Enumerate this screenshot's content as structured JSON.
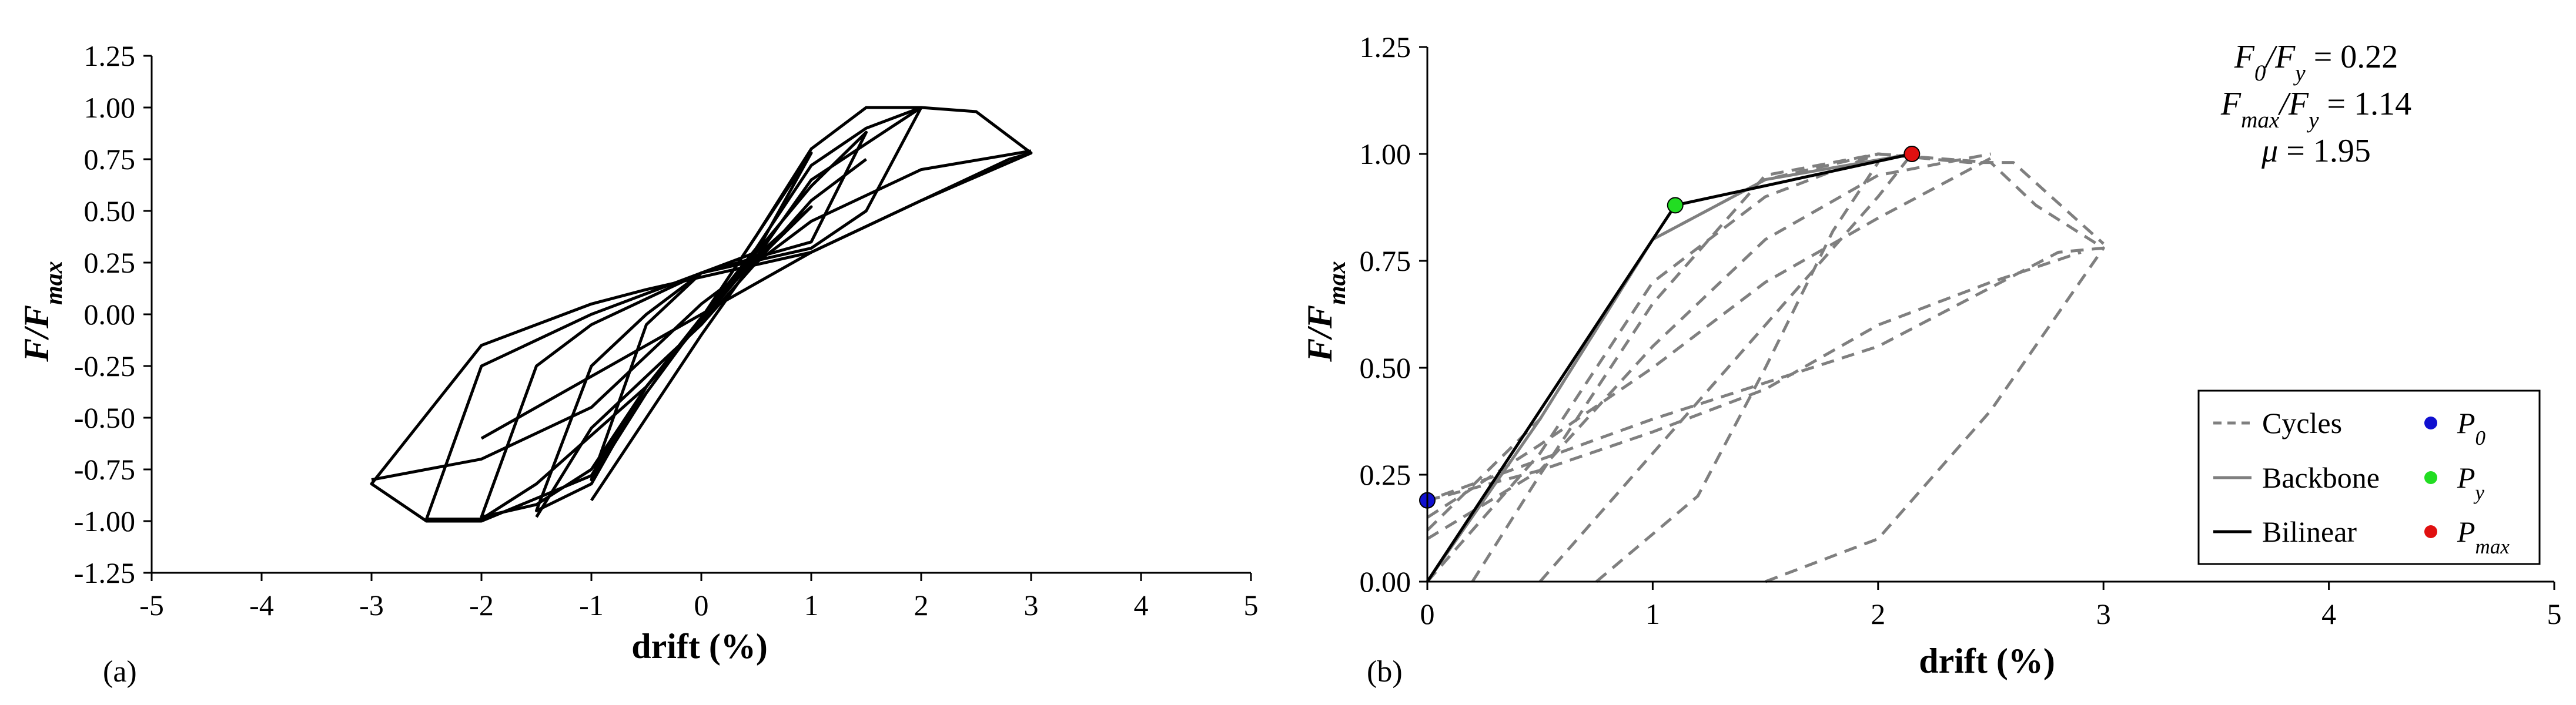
{
  "chart_data": [
    {
      "panel": "(a)",
      "type": "line",
      "xlabel": "drift (%)",
      "ylabel": "F/F_max",
      "xlim": [
        -5,
        5
      ],
      "ylim": [
        -1.25,
        1.25
      ],
      "xticks": [
        "-5",
        "-4",
        "-3",
        "-2",
        "-1",
        "0",
        "1",
        "2",
        "3",
        "4",
        "5"
      ],
      "yticks": [
        "1.25",
        "1.00",
        "0.75",
        "0.50",
        "0.25",
        "0.00",
        "-0.25",
        "-0.50",
        "-0.75",
        "-1.00",
        "-1.25"
      ],
      "grid": false,
      "series": [
        {
          "style": "solid",
          "color": "#000000",
          "points": [
            [
              -0.5,
              -0.35
            ],
            [
              -0.5,
              -0.35
            ],
            [
              0,
              -0.02
            ],
            [
              0.5,
              0.38
            ],
            [
              1,
              0.8
            ],
            [
              1.5,
              1.0
            ],
            [
              2,
              1.0
            ],
            [
              2.5,
              0.98
            ],
            [
              3,
              0.78
            ],
            [
              2.8,
              0.75
            ],
            [
              2,
              0.55
            ],
            [
              1,
              0.3
            ],
            [
              0,
              0.18
            ],
            [
              -0.5,
              0.12
            ],
            [
              -1,
              0.05
            ],
            [
              -2,
              -0.15
            ],
            [
              -3,
              -0.82
            ],
            [
              -2.5,
              -1.0
            ],
            [
              -2,
              -1.0
            ],
            [
              -1,
              -0.78
            ],
            [
              -0.5,
              -0.35
            ]
          ]
        },
        {
          "style": "solid",
          "color": "#000000",
          "points": [
            [
              -0.5,
              -0.35
            ],
            [
              0.5,
              0.32
            ],
            [
              1,
              0.72
            ],
            [
              1.5,
              0.9
            ],
            [
              2,
              1.0
            ],
            [
              1.5,
              0.5
            ],
            [
              1,
              0.32
            ],
            [
              0,
              0.2
            ],
            [
              -1,
              0.0
            ],
            [
              -2,
              -0.25
            ],
            [
              -2.5,
              -0.99
            ],
            [
              -2,
              -0.99
            ],
            [
              -1.5,
              -0.82
            ],
            [
              -0.5,
              -0.35
            ]
          ]
        },
        {
          "style": "solid",
          "color": "#000000",
          "points": [
            [
              -0.5,
              -0.35
            ],
            [
              0.5,
              0.3
            ],
            [
              1,
              0.62
            ],
            [
              1.5,
              0.88
            ],
            [
              1,
              0.35
            ],
            [
              0,
              0.2
            ],
            [
              -1,
              -0.05
            ],
            [
              -1.5,
              -0.25
            ],
            [
              -2,
              -0.98
            ],
            [
              -1.5,
              -0.92
            ],
            [
              -1,
              -0.75
            ],
            [
              -0.5,
              -0.35
            ]
          ]
        },
        {
          "style": "solid",
          "color": "#000000",
          "points": [
            [
              -0.5,
              -0.35
            ],
            [
              0.5,
              0.28
            ],
            [
              1,
              0.52
            ],
            [
              0.5,
              0.26
            ],
            [
              0,
              0.2
            ],
            [
              -0.5,
              0.0
            ],
            [
              -1,
              -0.25
            ],
            [
              -1.5,
              -0.95
            ],
            [
              -1,
              -0.82
            ],
            [
              -0.5,
              -0.35
            ]
          ]
        },
        {
          "style": "solid",
          "color": "#000000",
          "points": [
            [
              0,
              -0.02
            ],
            [
              1,
              0.78
            ],
            [
              0.5,
              0.3
            ],
            [
              0,
              0.2
            ],
            [
              -0.5,
              -0.05
            ],
            [
              -1,
              -0.8
            ],
            [
              -0.5,
              -0.38
            ],
            [
              0,
              -0.02
            ]
          ]
        },
        {
          "style": "solid",
          "color": "#000000",
          "points": [
            [
              -2,
              -0.6
            ],
            [
              -1,
              -0.3
            ],
            [
              0,
              0.0
            ],
            [
              1,
              0.3
            ],
            [
              2,
              0.55
            ],
            [
              3,
              0.78
            ]
          ]
        },
        {
          "style": "solid",
          "color": "#000000",
          "points": [
            [
              -3,
              -0.8
            ],
            [
              -2,
              -0.7
            ],
            [
              -1,
              -0.45
            ],
            [
              0,
              0.05
            ],
            [
              1,
              0.45
            ],
            [
              2,
              0.7
            ],
            [
              3,
              0.79
            ]
          ]
        },
        {
          "style": "solid",
          "color": "#000000",
          "points": [
            [
              -1.5,
              -0.98
            ],
            [
              -1,
              -0.55
            ],
            [
              0,
              -0.05
            ],
            [
              1,
              0.55
            ],
            [
              1.5,
              0.75
            ]
          ]
        },
        {
          "style": "solid",
          "color": "#000000",
          "points": [
            [
              -1,
              -0.9
            ],
            [
              0,
              -0.1
            ],
            [
              1,
              0.65
            ],
            [
              2,
              1.0
            ]
          ]
        }
      ]
    },
    {
      "panel": "(b)",
      "type": "line",
      "xlabel": "drift (%)",
      "ylabel": "F/F_max",
      "xlim": [
        0,
        5
      ],
      "ylim": [
        0,
        1.25
      ],
      "xticks": [
        "0",
        "1",
        "2",
        "3",
        "4",
        "5"
      ],
      "yticks": [
        "1.25",
        "1.00",
        "0.75",
        "0.50",
        "0.25",
        "0.00"
      ],
      "grid": false,
      "legend_position": "bottom-right",
      "legend": [
        {
          "label": "Cycles",
          "kind": "dashed-line",
          "color": "#7f7f7f"
        },
        {
          "label": "Backbone",
          "kind": "solid-line",
          "color": "#7f7f7f"
        },
        {
          "label": "Bilinear",
          "kind": "solid-line",
          "color": "#000000"
        },
        {
          "label": "P",
          "sub": "0",
          "kind": "marker",
          "color": "#1010d0"
        },
        {
          "label": "P",
          "sub": "y",
          "kind": "marker",
          "color": "#22dd22"
        },
        {
          "label": "P",
          "sub": "max",
          "kind": "marker",
          "color": "#e01010"
        }
      ],
      "annotations": [
        {
          "lhs": "F",
          "lsub": "0",
          "rhs": "F",
          "rsub": "y",
          "value": "= 0.22"
        },
        {
          "lhs": "F",
          "lsub": "max",
          "rhs": "F",
          "rsub": "y",
          "value": "= 1.14"
        },
        {
          "lhs": "μ",
          "value": "= 1.95"
        }
      ],
      "points": {
        "P0": {
          "x": 0,
          "y": 0.19
        },
        "Py": {
          "x": 1.1,
          "y": 0.88
        },
        "Pmax": {
          "x": 2.15,
          "y": 1.0
        }
      },
      "bilinear": [
        [
          0,
          0
        ],
        [
          1.1,
          0.88
        ],
        [
          2.15,
          1.0
        ]
      ],
      "backbone": [
        [
          0,
          0
        ],
        [
          0.5,
          0.38
        ],
        [
          1,
          0.8
        ],
        [
          1.5,
          0.94
        ],
        [
          2.15,
          1.0
        ]
      ],
      "cycles": [
        [
          [
            0,
            0.12
          ],
          [
            0.5,
            0.38
          ],
          [
            1,
            0.8
          ],
          [
            1.5,
            0.94
          ],
          [
            2,
            1.0
          ],
          [
            2.5,
            0.98
          ],
          [
            2.7,
            0.88
          ],
          [
            3,
            0.78
          ],
          [
            2.8,
            0.77
          ],
          [
            2,
            0.55
          ],
          [
            1,
            0.38
          ],
          [
            0,
            0.19
          ]
        ],
        [
          [
            0,
            0.0
          ],
          [
            0.5,
            0.3
          ],
          [
            1,
            0.7
          ],
          [
            1.5,
            0.9
          ],
          [
            2,
            1.0
          ],
          [
            2.4,
            0.98
          ],
          [
            2.6,
            0.98
          ],
          [
            3,
            0.79
          ]
        ],
        [
          [
            0,
            0.1
          ],
          [
            0.5,
            0.26
          ],
          [
            1,
            0.55
          ],
          [
            1.5,
            0.8
          ],
          [
            2,
            0.95
          ],
          [
            2.5,
            1.0
          ]
        ],
        [
          [
            0.2,
            0.0
          ],
          [
            0.5,
            0.25
          ],
          [
            1,
            0.65
          ],
          [
            1.5,
            0.95
          ],
          [
            2,
            1.0
          ]
        ],
        [
          [
            0.5,
            0.0
          ],
          [
            1,
            0.3
          ],
          [
            1.5,
            0.6
          ],
          [
            2,
            0.9
          ],
          [
            2.15,
            1.0
          ]
        ],
        [
          [
            0.75,
            0.0
          ],
          [
            1.2,
            0.2
          ],
          [
            1.5,
            0.5
          ],
          [
            1.8,
            0.82
          ],
          [
            2,
            0.98
          ]
        ],
        [
          [
            1.5,
            0.0
          ],
          [
            2,
            0.1
          ],
          [
            2.5,
            0.4
          ],
          [
            3,
            0.78
          ]
        ],
        [
          [
            0,
            0.19
          ],
          [
            0.5,
            0.26
          ],
          [
            1,
            0.35
          ],
          [
            1.5,
            0.45
          ],
          [
            2,
            0.6
          ],
          [
            2.5,
            0.7
          ],
          [
            2.9,
            0.77
          ]
        ],
        [
          [
            0,
            0.15
          ],
          [
            0.5,
            0.32
          ],
          [
            1,
            0.5
          ],
          [
            1.5,
            0.7
          ],
          [
            2,
            0.85
          ],
          [
            2.5,
            0.99
          ]
        ]
      ]
    }
  ]
}
